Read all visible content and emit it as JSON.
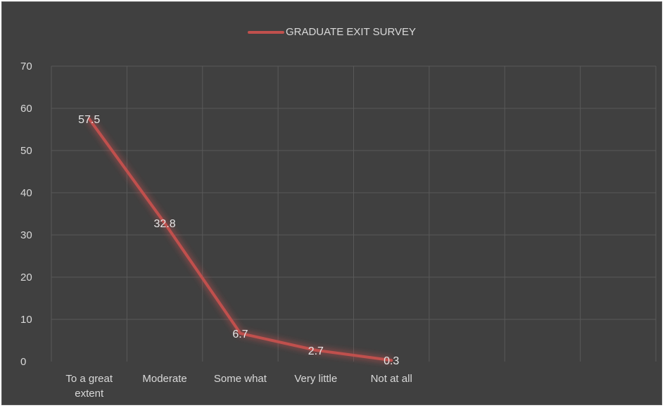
{
  "chart_data": {
    "type": "line",
    "title": "",
    "xlabel": "",
    "ylabel": "",
    "legend": {
      "entries": [
        "GRADUATE EXIT SURVEY"
      ],
      "placement": "top"
    },
    "categories": [
      [
        "To a great",
        "extent"
      ],
      [
        "Moderate"
      ],
      [
        "Some what"
      ],
      [
        "Very little"
      ],
      [
        "Not at all"
      ]
    ],
    "series": [
      {
        "name": "GRADUATE EXIT SURVEY",
        "values": [
          57.5,
          32.8,
          6.7,
          2.7,
          0.3
        ],
        "data_labels": [
          "57.5",
          "32.8",
          "6.7",
          "2.7",
          "0.3"
        ],
        "color": "#c0504d"
      }
    ],
    "ylim": [
      0,
      70
    ],
    "y_ticks": [
      "0",
      "10",
      "20",
      "30",
      "40",
      "50",
      "60",
      "70"
    ],
    "category_slots": 8,
    "grid": true
  },
  "colors": {
    "background": "#404040",
    "grid": "#595959",
    "line": "#c0504d",
    "text": "#d9d9d9"
  }
}
